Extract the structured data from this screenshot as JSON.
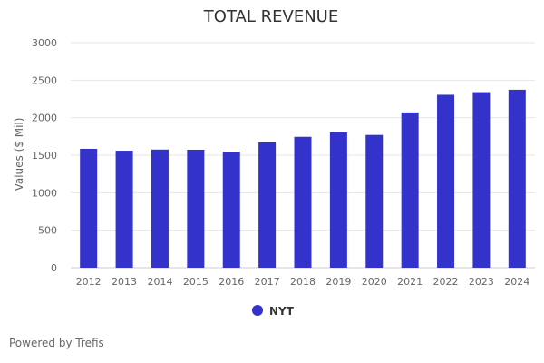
{
  "chart_data": {
    "type": "bar",
    "title": "TOTAL REVENUE",
    "ylabel": "Values ($ Mil)",
    "xlabel": "",
    "categories": [
      "2012",
      "2013",
      "2014",
      "2015",
      "2016",
      "2017",
      "2018",
      "2019",
      "2020",
      "2021",
      "2022",
      "2023",
      "2024"
    ],
    "series": [
      {
        "name": "NYT",
        "values": [
          1585,
          1560,
          1575,
          1573,
          1548,
          1670,
          1745,
          1805,
          1770,
          2070,
          2305,
          2340,
          2372
        ]
      }
    ],
    "yticks": [
      "0",
      "500",
      "1000",
      "1500",
      "2000",
      "2500",
      "3000"
    ],
    "ylim": [
      0,
      3000
    ],
    "grid": true,
    "legend_position": "bottom-center",
    "colors": {
      "bar": "#3333cc",
      "grid": "#e6e6e6"
    }
  },
  "footer": {
    "credit": "Powered by Trefis"
  }
}
